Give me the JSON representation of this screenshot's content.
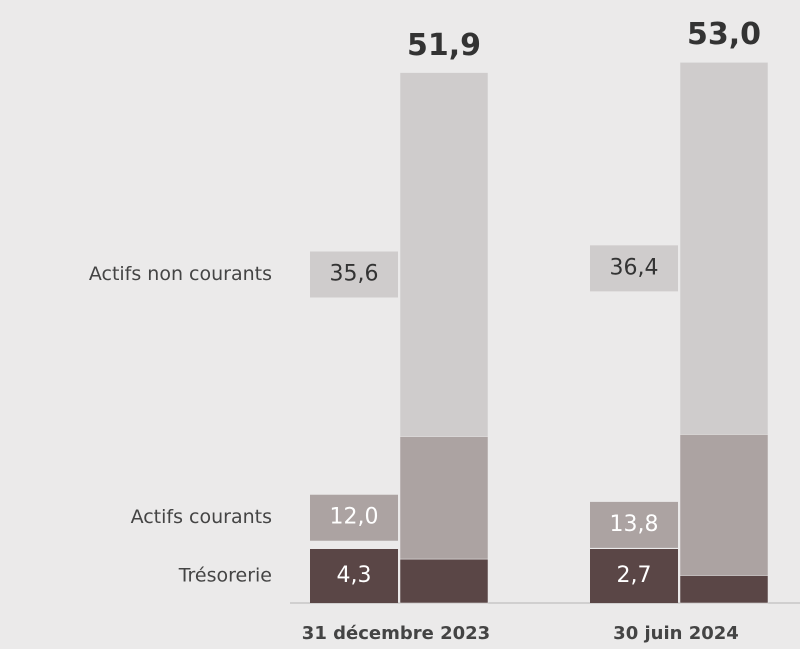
{
  "chart_data": {
    "type": "stacked-bar",
    "categories": [
      "31 décembre 2023",
      "30 juin 2024"
    ],
    "series": [
      {
        "name": "Trésorerie",
        "color": "#5a4646",
        "values": [
          4.3,
          2.7
        ],
        "value_labels": [
          "4,3",
          "2,7"
        ]
      },
      {
        "name": "Actifs courants",
        "color": "#aca3a2",
        "values": [
          12.0,
          13.8
        ],
        "value_labels": [
          "12,0",
          "13,8"
        ]
      },
      {
        "name": "Actifs non courants",
        "color": "#cfcccc",
        "values": [
          35.6,
          36.4
        ],
        "value_labels": [
          "35,6",
          "36,4"
        ]
      }
    ],
    "totals": [
      51.9,
      53.0
    ],
    "total_labels": [
      "51,9",
      "53,0"
    ]
  }
}
